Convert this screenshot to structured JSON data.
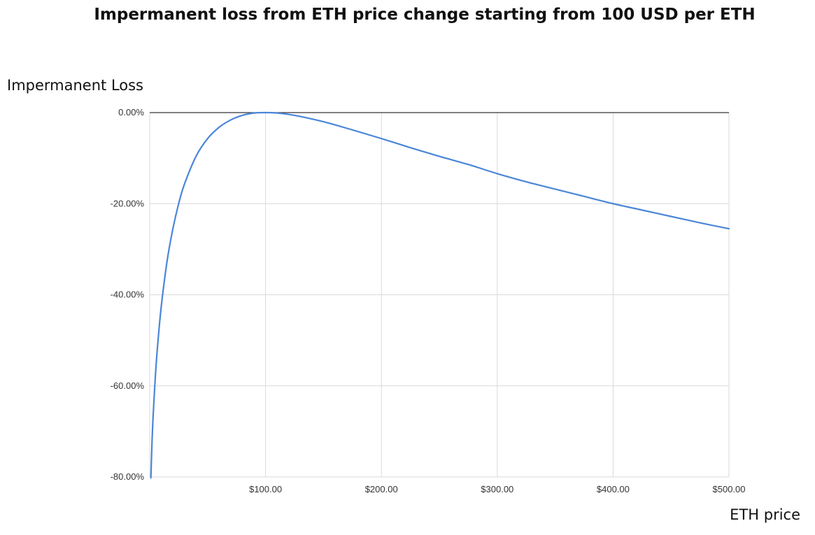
{
  "chart_data": {
    "type": "line",
    "title": "Impermanent loss from ETH price change starting from 100 USD per ETH",
    "xlabel": "ETH price",
    "ylabel": "Impermanent Loss",
    "xlim": [
      0,
      500
    ],
    "ylim": [
      -80,
      0
    ],
    "x_ticks": [
      100,
      200,
      300,
      400,
      500
    ],
    "x_tick_labels": [
      "$100.00",
      "$200.00",
      "$300.00",
      "$400.00",
      "$500.00"
    ],
    "y_ticks": [
      0,
      -20,
      -40,
      -60,
      -80
    ],
    "y_tick_labels": [
      "0.00%",
      "-20.00%",
      "-40.00%",
      "-60.00%",
      "-80.00%"
    ],
    "grid": true,
    "legend": "none",
    "line_color": "#4a86d8",
    "series": [
      {
        "x": [
          1,
          2,
          3,
          5,
          7,
          10,
          15,
          20,
          25,
          30,
          40,
          50,
          60,
          70,
          80,
          90,
          100,
          110,
          125,
          150,
          175,
          200,
          225,
          250,
          275,
          300,
          325,
          350,
          375,
          400,
          425,
          450,
          475,
          500
        ],
        "values": [
          -80.2,
          -72.3,
          -66.4,
          -57.4,
          -50.6,
          -42.5,
          -32.6,
          -25.5,
          -20.0,
          -15.7,
          -9.6,
          -5.7,
          -3.2,
          -1.6,
          -0.6,
          -0.1,
          0.0,
          -0.1,
          -0.6,
          -2.0,
          -3.8,
          -5.7,
          -7.7,
          -9.6,
          -11.4,
          -13.4,
          -15.2,
          -16.8,
          -18.4,
          -20.0,
          -21.4,
          -22.8,
          -24.2,
          -25.5
        ]
      }
    ]
  }
}
